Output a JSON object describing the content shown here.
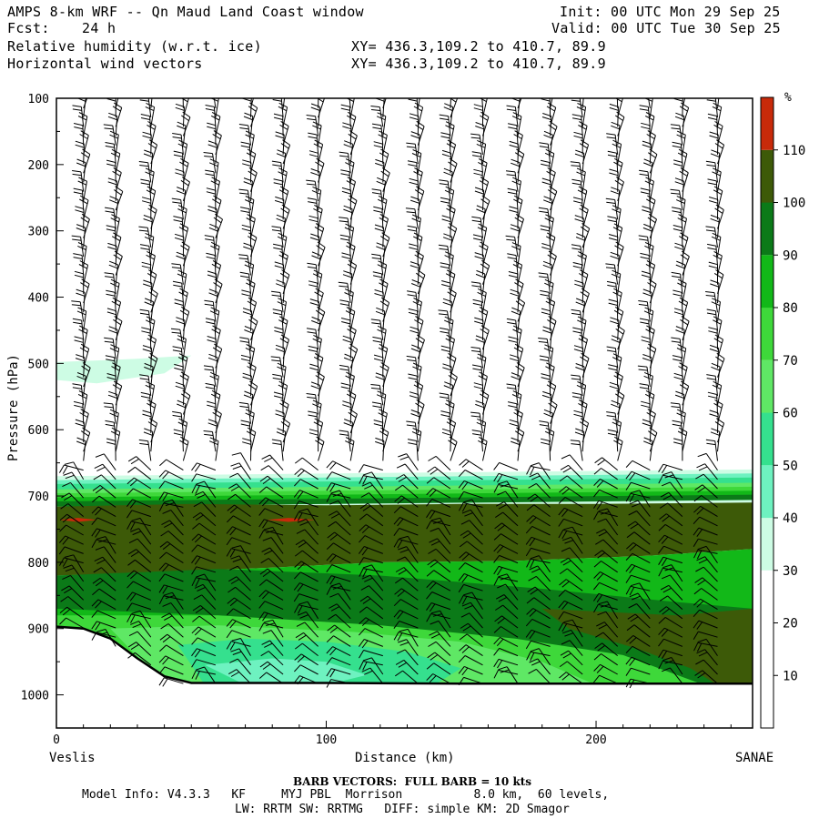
{
  "header": {
    "title": "AMPS 8-km WRF -- Qn Maud Land Coast window",
    "fcst_label": "Fcst:",
    "fcst_value": "24 h",
    "field1": "Relative humidity (w.r.t. ice)",
    "field2": "Horizontal wind vectors",
    "init": "Init: 00 UTC Mon 29 Sep 25",
    "valid": "Valid: 00 UTC Tue 30 Sep 25",
    "xy1": "XY= 436.3,109.2 to 410.7, 89.9",
    "xy2": "XY= 436.3,109.2 to 410.7, 89.9"
  },
  "chart_data": {
    "type": "heatmap",
    "xlabel": "Distance (km)",
    "ylabel": "Pressure (hPa)",
    "x_ticks": [
      0,
      100,
      200
    ],
    "y_ticks": [
      100,
      200,
      300,
      400,
      500,
      600,
      700,
      800,
      900,
      1000
    ],
    "xlim": [
      0,
      258
    ],
    "ylim": [
      100,
      1050
    ],
    "y_inverted": true,
    "left_endpoint": "Veslis",
    "right_endpoint": "SANAE",
    "colorbar": {
      "unit": "%",
      "tick_labels": [
        10,
        20,
        30,
        40,
        50,
        60,
        70,
        80,
        90,
        100,
        110
      ],
      "bins": [
        {
          "from": 0,
          "to": 30,
          "color": "#ffffff"
        },
        {
          "from": 30,
          "to": 40,
          "color": "#cdfce4"
        },
        {
          "from": 40,
          "to": 50,
          "color": "#6ef2c0"
        },
        {
          "from": 50,
          "to": 60,
          "color": "#35e08e"
        },
        {
          "from": 60,
          "to": 70,
          "color": "#5fe865"
        },
        {
          "from": 70,
          "to": 80,
          "color": "#3ed83a"
        },
        {
          "from": 80,
          "to": 90,
          "color": "#12b818"
        },
        {
          "from": 90,
          "to": 100,
          "color": "#0b7a18"
        },
        {
          "from": 100,
          "to": 110,
          "color": "#3d5a08"
        },
        {
          "from": 110,
          "to": 120,
          "color": "#c82a0a"
        }
      ]
    },
    "surface_pressure": {
      "x": [
        0,
        10,
        20,
        30,
        40,
        50,
        60,
        80,
        100,
        150,
        200,
        258
      ],
      "p": [
        897,
        900,
        915,
        945,
        972,
        982,
        982,
        982,
        982,
        983,
        983,
        983
      ]
    },
    "moist_layer": {
      "top_hPa_x0": 672,
      "top_hPa_x258": 662,
      "rh_range_percent": [
        30,
        110
      ],
      "note_region": "mostly saturated 700-980 hPa across transect"
    },
    "upper_patch": {
      "x_range": [
        0,
        50
      ],
      "p_range": [
        488,
        530
      ],
      "rh_bin": "30-40"
    },
    "wind_barbs": {
      "x_columns_km": [
        10,
        22,
        35,
        47,
        59,
        72,
        84,
        97,
        109,
        121,
        134,
        146,
        158,
        171,
        183,
        195,
        208,
        220,
        232,
        245
      ]
    }
  },
  "footer": {
    "barb_note": "BARB VECTORS:  FULL BARB = 10 kts",
    "model_line1": "Model Info: V4.3.3   KF     MYJ PBL  Morrison          8.0 km,  60 levels,",
    "model_line2": "LW: RRTM SW: RRTMG   DIFF: simple KM: 2D Smagor"
  }
}
